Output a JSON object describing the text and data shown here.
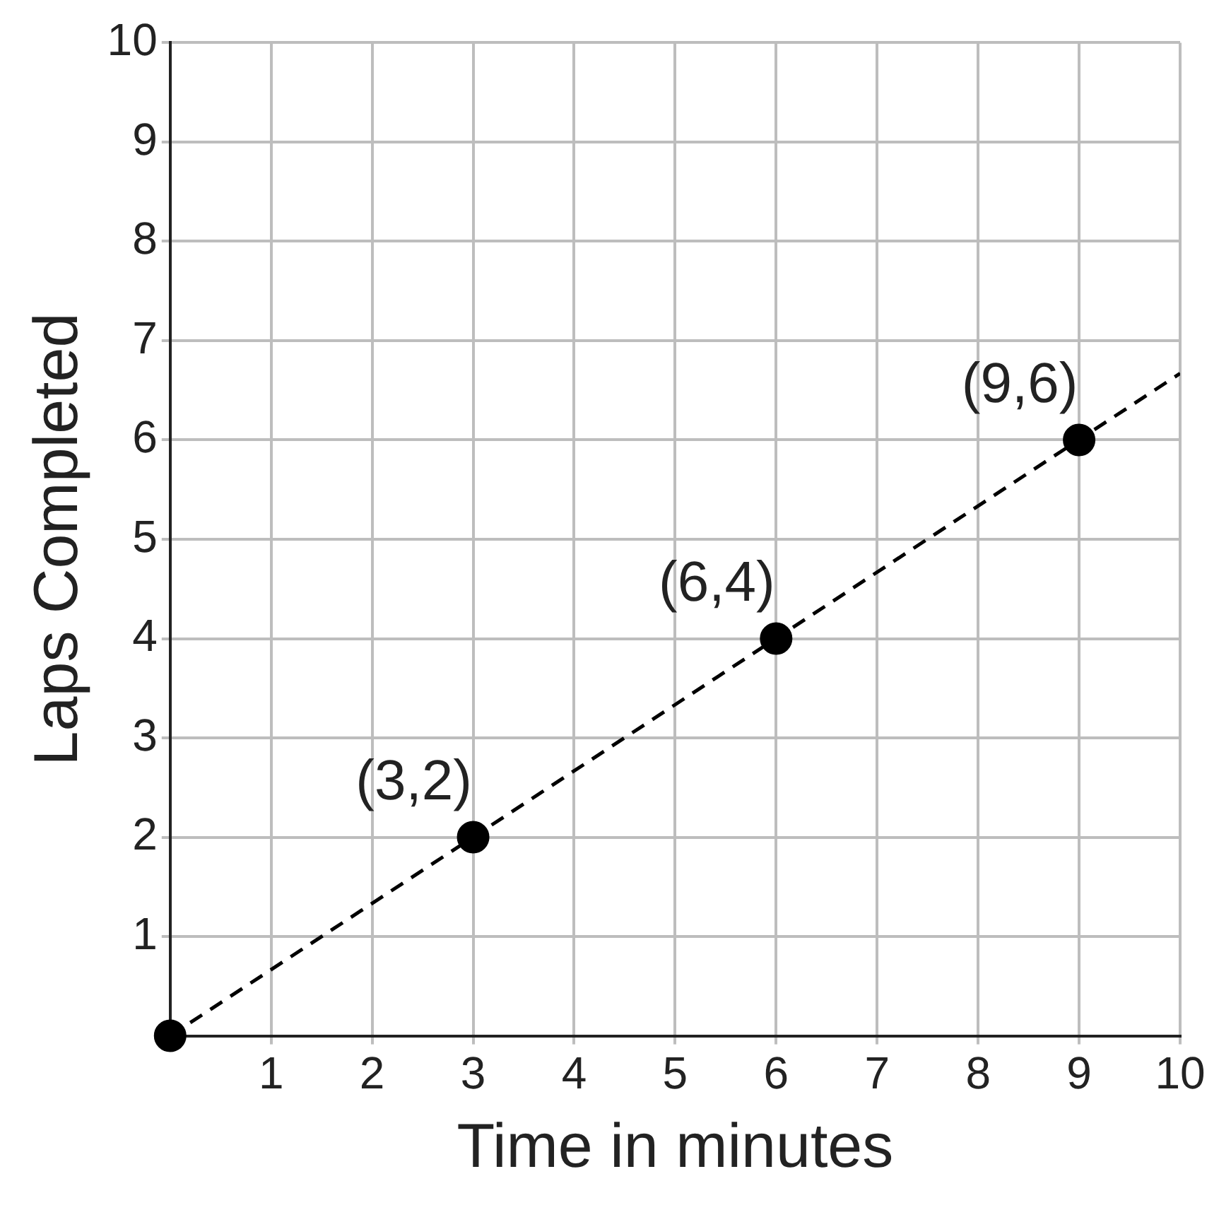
{
  "chart_data": {
    "type": "scatter",
    "xlabel": "Time in minutes",
    "ylabel": "Laps Completed",
    "xlim": [
      0,
      10
    ],
    "ylim": [
      0,
      10
    ],
    "xticks": [
      {
        "value": 0,
        "label": null
      },
      1,
      2,
      3,
      4,
      5,
      6,
      7,
      8,
      9,
      10
    ],
    "yticks": [
      {
        "value": 0,
        "label": null
      },
      1,
      2,
      3,
      4,
      5,
      6,
      7,
      8,
      9,
      10
    ],
    "grid": true,
    "series": [
      {
        "type": "scatter",
        "color": "#000000",
        "x": [
          0,
          3,
          6,
          9
        ],
        "values": [
          0,
          2,
          4,
          6
        ],
        "marker": "circle"
      },
      {
        "type": "line",
        "color": "#000000",
        "x": [
          0,
          10
        ],
        "values": [
          0,
          6.67
        ],
        "line_style": "dashed",
        "marker": "none"
      }
    ],
    "annotations": [
      {
        "text": "(3,2)",
        "x": 3,
        "y": 2
      },
      {
        "text": "(6,4)",
        "x": 6,
        "y": 4
      },
      {
        "text": "(9,6)",
        "x": 9,
        "y": 6
      }
    ]
  }
}
